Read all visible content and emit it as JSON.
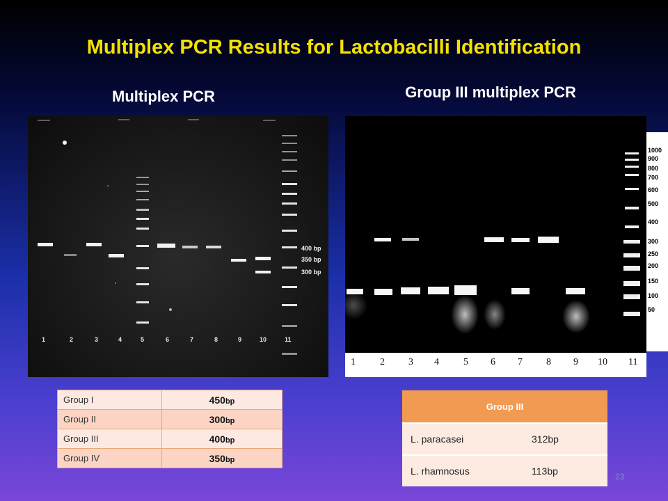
{
  "title": "Multiplex PCR Results for Lactobacilli Identification",
  "left_panel": {
    "subtitle": "Multiplex PCR",
    "lanes": [
      "1",
      "2",
      "3",
      "4",
      "5",
      "6",
      "7",
      "8",
      "9",
      "10",
      "11"
    ],
    "bp_labels": [
      "400 bp",
      "350 bp",
      "300 bp"
    ]
  },
  "right_panel": {
    "subtitle": "Group III multiplex PCR",
    "lanes": [
      "1",
      "2",
      "3",
      "4",
      "5",
      "6",
      "7",
      "8",
      "9",
      "10",
      "11"
    ],
    "ladder_scale": [
      "1000",
      "900",
      "800",
      "700",
      "600",
      "500",
      "400",
      "300",
      "250",
      "200",
      "150",
      "100",
      "50"
    ]
  },
  "group_table": {
    "rows": [
      {
        "group": "Group I",
        "size": "450",
        "unit": "bp"
      },
      {
        "group": "Group II",
        "size": "300",
        "unit": "bp"
      },
      {
        "group": "Group III",
        "size": "400",
        "unit": "bp"
      },
      {
        "group": "Group IV",
        "size": "350",
        "unit": "bp"
      }
    ]
  },
  "group3_table": {
    "header": "Group III",
    "rows": [
      {
        "species": "L. paracasei",
        "size": "312bp"
      },
      {
        "species": "L. rhamnosus",
        "size": "113bp"
      }
    ]
  },
  "page_number": "23"
}
